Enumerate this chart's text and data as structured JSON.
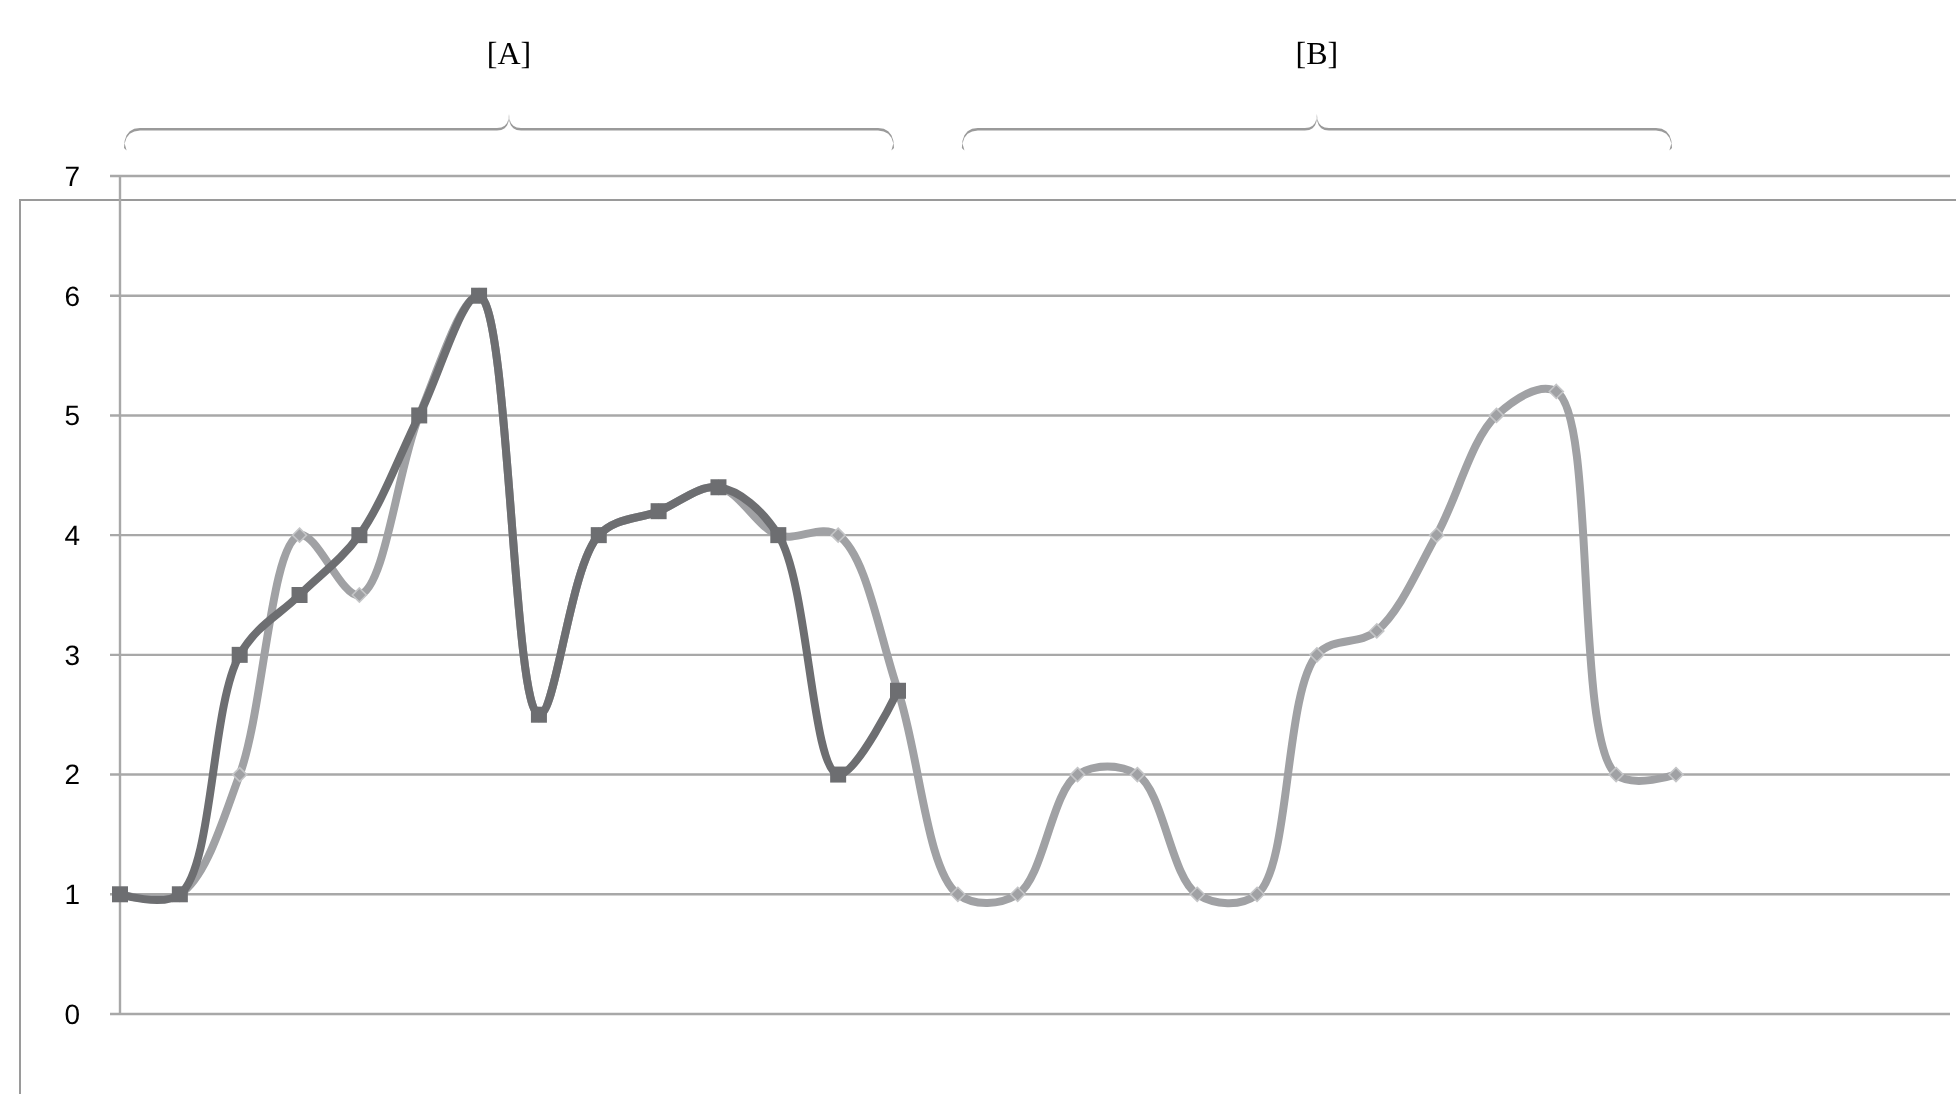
{
  "chart_data": {
    "type": "line",
    "categories": [
      null,
      null,
      null,
      null,
      null,
      null,
      null,
      null,
      null,
      null,
      null,
      null,
      null,
      null,
      null,
      null,
      null,
      null,
      null,
      null,
      null,
      null,
      null,
      null,
      null,
      null,
      null
    ],
    "series": [
      {
        "color": "#a0a1a4",
        "marker": "diamond",
        "values": [
          1,
          1,
          2,
          4,
          3.5,
          5,
          6,
          2.5,
          4,
          4.2,
          4.4,
          4,
          4,
          2.7,
          1,
          1,
          2,
          2,
          1,
          1,
          3,
          3.2,
          4,
          5,
          5.2,
          2,
          2
        ]
      },
      {
        "color": "#6d6e71",
        "marker": "square",
        "values": [
          1,
          1,
          3,
          3.5,
          4,
          5,
          6,
          2.5,
          4,
          4.2,
          4.4,
          4,
          2,
          2.7,
          null,
          null,
          null,
          null,
          null,
          null,
          null,
          null,
          null,
          null,
          null,
          null,
          null
        ]
      }
    ],
    "ylim": [
      0,
      7
    ],
    "yticks": [
      0,
      1,
      2,
      3,
      4,
      5,
      6,
      7
    ],
    "grid": "y",
    "tick_labels": "y",
    "line_style": "solid",
    "annotations": [
      "[A]",
      "[B]"
    ]
  }
}
